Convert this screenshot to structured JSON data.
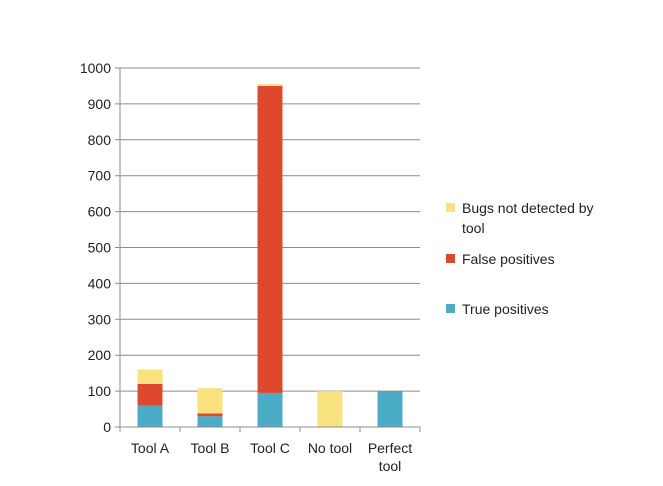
{
  "chart_data": {
    "type": "bar",
    "stacked": true,
    "categories": [
      [
        "Tool A"
      ],
      [
        "Tool B"
      ],
      [
        "Tool C"
      ],
      [
        "No tool"
      ],
      [
        "Perfect",
        "tool"
      ]
    ],
    "series": [
      {
        "name": "True positives",
        "color": "#4BACC6",
        "values": [
          60,
          30,
          95,
          0,
          100
        ]
      },
      {
        "name": "False positives",
        "color": "#E0482D",
        "values": [
          60,
          8,
          855,
          0,
          0
        ]
      },
      {
        "name": "Bugs not detected by tool",
        "color": "#F7E27F",
        "values": [
          40,
          70,
          5,
          100,
          0
        ]
      }
    ],
    "ylim": [
      0,
      1000
    ],
    "yticks": [
      0,
      100,
      200,
      300,
      400,
      500,
      600,
      700,
      800,
      900,
      1000
    ],
    "grid": true,
    "legend_position": "right",
    "legend_order": [
      {
        "lines": [
          "Bugs not detected by",
          "tool"
        ],
        "color": "#F7E27F"
      },
      {
        "lines": [
          "False positives"
        ],
        "color": "#E0482D"
      },
      {
        "lines": [
          "True positives"
        ],
        "color": "#4BACC6"
      }
    ]
  }
}
